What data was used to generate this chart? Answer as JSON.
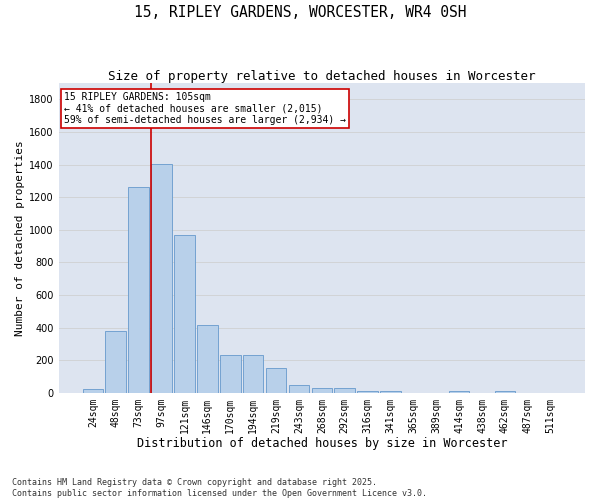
{
  "title": "15, RIPLEY GARDENS, WORCESTER, WR4 0SH",
  "subtitle": "Size of property relative to detached houses in Worcester",
  "xlabel": "Distribution of detached houses by size in Worcester",
  "ylabel": "Number of detached properties",
  "categories": [
    "24sqm",
    "48sqm",
    "73sqm",
    "97sqm",
    "121sqm",
    "146sqm",
    "170sqm",
    "194sqm",
    "219sqm",
    "243sqm",
    "268sqm",
    "292sqm",
    "316sqm",
    "341sqm",
    "365sqm",
    "389sqm",
    "414sqm",
    "438sqm",
    "462sqm",
    "487sqm",
    "511sqm"
  ],
  "values": [
    25,
    380,
    1265,
    1405,
    965,
    415,
    230,
    230,
    150,
    50,
    30,
    30,
    10,
    10,
    0,
    0,
    10,
    0,
    10,
    0,
    0
  ],
  "bar_color": "#b8d0ea",
  "bar_edge_color": "#6699cc",
  "vline_color": "#cc0000",
  "vline_x_index": 3,
  "annotation_text": "15 RIPLEY GARDENS: 105sqm\n← 41% of detached houses are smaller (2,015)\n59% of semi-detached houses are larger (2,934) →",
  "annotation_box_color": "white",
  "annotation_box_edge": "#cc0000",
  "ylim": [
    0,
    1900
  ],
  "yticks": [
    0,
    200,
    400,
    600,
    800,
    1000,
    1200,
    1400,
    1600,
    1800
  ],
  "grid_color": "#cccccc",
  "bg_color": "#dde4f0",
  "footer": "Contains HM Land Registry data © Crown copyright and database right 2025.\nContains public sector information licensed under the Open Government Licence v3.0.",
  "title_fontsize": 10.5,
  "subtitle_fontsize": 9,
  "xlabel_fontsize": 8.5,
  "ylabel_fontsize": 8,
  "tick_fontsize": 7,
  "footer_fontsize": 6,
  "annotation_fontsize": 7
}
